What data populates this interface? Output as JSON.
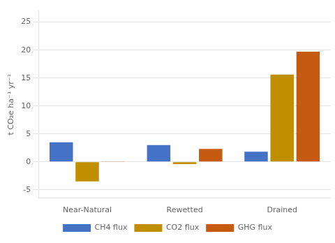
{
  "chart_data": {
    "type": "bar",
    "categories": [
      "Near-Natural",
      "Rewetted",
      "Drained"
    ],
    "series": [
      {
        "name": "CH4 flux",
        "color": "#4472C4",
        "values": [
          3.5,
          3.0,
          1.8
        ]
      },
      {
        "name": "CO2 flux",
        "color": "#BF8F00",
        "values": [
          -3.5,
          -0.4,
          15.6
        ]
      },
      {
        "name": "GHG flux",
        "color": "#C55A11",
        "values": [
          0.1,
          2.3,
          19.7
        ]
      }
    ],
    "ylabel": "t CO₂e ha⁻¹ yr⁻¹",
    "ylim": [
      -6.5,
      27
    ],
    "yticks": [
      -5,
      0,
      5,
      10,
      15,
      20,
      25
    ],
    "grid": true,
    "legend": "bottom"
  }
}
